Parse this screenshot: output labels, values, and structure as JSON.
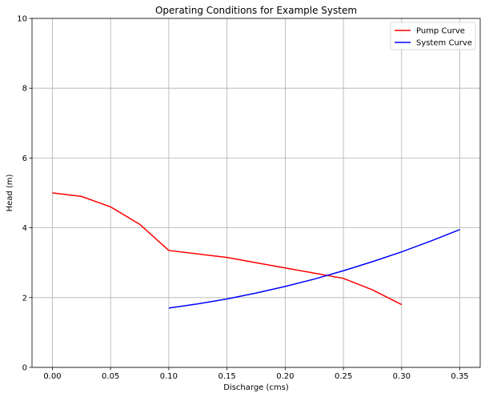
{
  "chart_data": {
    "type": "line",
    "title": "Operating Conditions for Example System",
    "xlabel": "Discharge (cms)",
    "ylabel": "Head (m)",
    "xlim": [
      -0.0175,
      0.3675
    ],
    "ylim": [
      0,
      10
    ],
    "xticks": [
      "0.00",
      "0.05",
      "0.10",
      "0.15",
      "0.20",
      "0.25",
      "0.30",
      "0.35"
    ],
    "yticks": [
      "0",
      "2",
      "4",
      "6",
      "8",
      "10"
    ],
    "grid": true,
    "legend_position": "top-right",
    "series": [
      {
        "name": "Pump Curve",
        "color": "#ff0000",
        "x": [
          0.0,
          0.025,
          0.05,
          0.075,
          0.1,
          0.125,
          0.15,
          0.175,
          0.2,
          0.225,
          0.25,
          0.275,
          0.3
        ],
        "y": [
          5.0,
          4.9,
          4.6,
          4.1,
          3.35,
          3.25,
          3.15,
          3.0,
          2.85,
          2.7,
          2.55,
          2.22,
          1.8
        ]
      },
      {
        "name": "System Curve",
        "color": "#0000ff",
        "x": [
          0.1,
          0.125,
          0.15,
          0.175,
          0.2,
          0.225,
          0.25,
          0.275,
          0.3,
          0.325,
          0.35
        ],
        "y": [
          1.7,
          1.82,
          1.96,
          2.13,
          2.32,
          2.53,
          2.77,
          3.03,
          3.31,
          3.62,
          3.95
        ]
      }
    ]
  }
}
